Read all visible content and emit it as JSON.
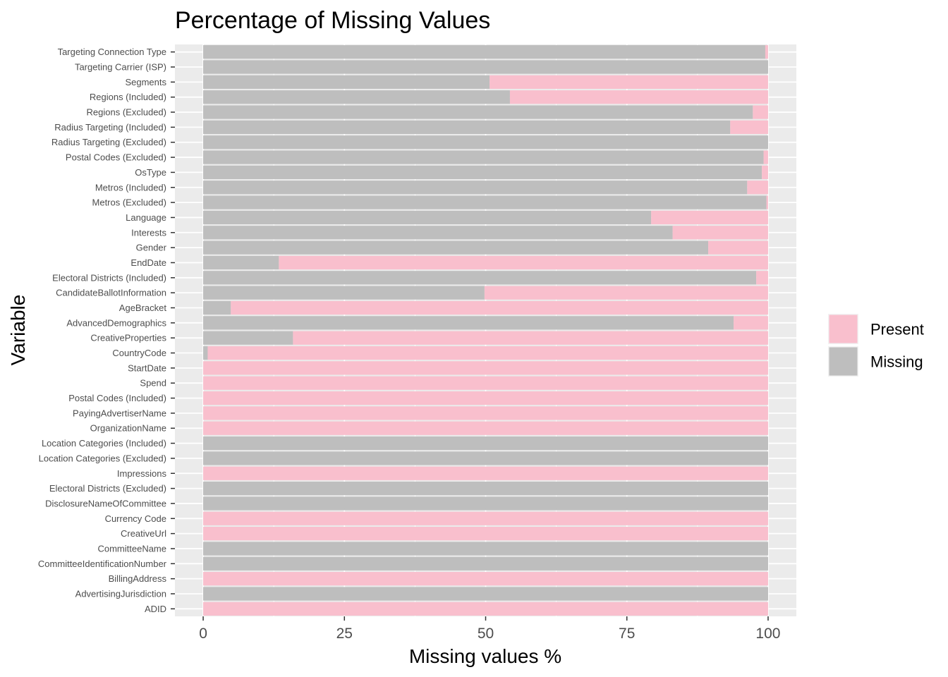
{
  "chart_data": {
    "type": "bar",
    "title": "Percentage of Missing Values",
    "xlabel": "Missing values %",
    "ylabel": "Variable",
    "xlim": [
      -5,
      105
    ],
    "xticks": [
      0,
      25,
      50,
      75,
      100
    ],
    "grid": true,
    "legend_position": "right",
    "colors": {
      "Present": "#f9bfcd",
      "Missing": "#bebebe",
      "panel": "#ebebeb",
      "grid": "#ffffff"
    },
    "legend": [
      "Present",
      "Missing"
    ],
    "categories": [
      "Targeting Connection Type",
      "Targeting Carrier (ISP)",
      "Segments",
      "Regions (Included)",
      "Regions (Excluded)",
      "Radius Targeting (Included)",
      "Radius Targeting (Excluded)",
      "Postal Codes (Excluded)",
      "OsType",
      "Metros (Included)",
      "Metros (Excluded)",
      "Language",
      "Interests",
      "Gender",
      "EndDate",
      "Electoral Districts (Included)",
      "CandidateBallotInformation",
      "AgeBracket",
      "AdvancedDemographics",
      "CreativeProperties",
      "CountryCode",
      "StartDate",
      "Spend",
      "Postal Codes (Included)",
      "PayingAdvertiserName",
      "OrganizationName",
      "Location Categories (Included)",
      "Location Categories (Excluded)",
      "Impressions",
      "Electoral Districts (Excluded)",
      "DisclosureNameOfCommittee",
      "Currency Code",
      "CreativeUrl",
      "CommitteeName",
      "CommitteeIdentificationNumber",
      "BillingAddress",
      "AdvertisingJurisdiction",
      "ADID"
    ],
    "series": [
      {
        "name": "Missing",
        "values": [
          99.5,
          100,
          50.7,
          54.3,
          97.3,
          93.3,
          100,
          99.2,
          98.9,
          96.3,
          99.7,
          79.3,
          83.1,
          89.4,
          13.4,
          97.9,
          49.8,
          4.9,
          93.9,
          15.9,
          0.8,
          0,
          0,
          0,
          0,
          0,
          100,
          100,
          0,
          100,
          100,
          0,
          0,
          100,
          100,
          0,
          100,
          0
        ]
      },
      {
        "name": "Present",
        "values": [
          0.5,
          0,
          49.3,
          45.7,
          2.7,
          6.7,
          0,
          0.8,
          1.1,
          3.7,
          0.3,
          20.7,
          16.9,
          10.6,
          86.6,
          2.1,
          50.2,
          95.1,
          6.1,
          84.1,
          99.2,
          100,
          100,
          100,
          100,
          100,
          0,
          0,
          100,
          0,
          0,
          100,
          100,
          0,
          0,
          100,
          0,
          100
        ]
      }
    ]
  }
}
